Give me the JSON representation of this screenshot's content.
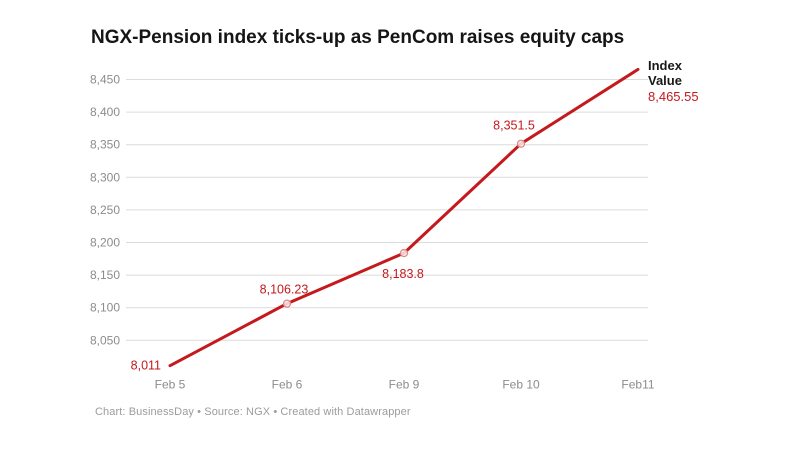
{
  "header": {
    "title": "NGX-Pension index ticks-up as PenCom raises equity caps"
  },
  "legend": {
    "line1": "Index",
    "line2": "Value",
    "value": "8,465.55"
  },
  "footer": {
    "attribution": "Chart: BusinessDay • Source: NGX  • Created with Datawrapper"
  },
  "colors": {
    "line": "#c4191d",
    "point_label": "#c4191d",
    "grid": "#dcdcdc",
    "axis_text": "#8c8c8c",
    "marker_fill": "#fbecec",
    "marker_stroke": "#d98c8b",
    "title": "#151515",
    "legend_text": "#191919",
    "footer_text": "#9c9c9c"
  },
  "chart_data": {
    "type": "line",
    "title": "NGX-Pension index ticks-up as PenCom raises equity caps",
    "series_name": "Index Value",
    "categories": [
      "Feb 5",
      "Feb 6",
      "Feb 9",
      "Feb 10",
      "Feb11"
    ],
    "values": [
      8011,
      8106.23,
      8183.8,
      8351.5,
      8465.55
    ],
    "value_labels": [
      "8,011",
      "8,106.23",
      "8,183.8",
      "8,351.5",
      "8,465.55"
    ],
    "y_ticks": [
      8450,
      8400,
      8350,
      8300,
      8250,
      8200,
      8150,
      8100,
      8050
    ],
    "y_tick_labels": [
      "8,450",
      "8,400",
      "8,350",
      "8,300",
      "8,250",
      "8,200",
      "8,150",
      "8,100",
      "8,050"
    ],
    "ylim": [
      8011,
      8465.55
    ],
    "grid": true,
    "legend_position": "top-right",
    "attribution": "Chart: BusinessDay • Source: NGX  • Created with Datawrapper"
  }
}
